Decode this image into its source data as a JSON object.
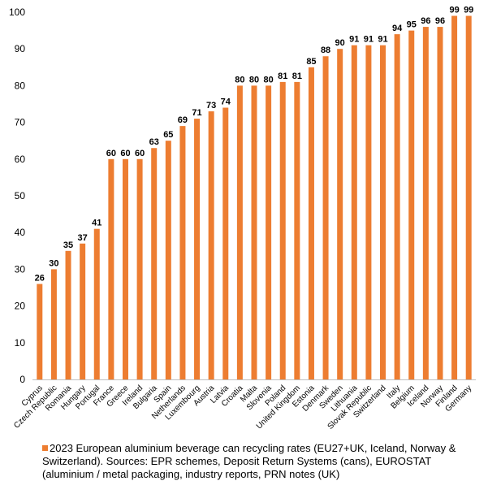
{
  "chart_data": {
    "type": "bar",
    "title": "",
    "xlabel": "",
    "ylabel": "",
    "ylim": [
      0,
      100
    ],
    "yticks": [
      0,
      10,
      20,
      30,
      40,
      50,
      60,
      70,
      80,
      90,
      100
    ],
    "grid": false,
    "bar_color": "#ED7D31",
    "categories": [
      "Cyprus",
      "Czech Republic",
      "Romania",
      "Hungary",
      "Portugal",
      "France",
      "Greece",
      "Ireland",
      "Bulgaria",
      "Spain",
      "Netherlands",
      "Luxembourg",
      "Austria",
      "Latvia",
      "Croatia",
      "Malta",
      "Slovenia",
      "Poland",
      "United Kingdom",
      "Estonia",
      "Denmark",
      "Sweden",
      "Lithuania",
      "Slovak Republic",
      "Switzerland",
      "Italy",
      "Belgium",
      "Iceland",
      "Norway",
      "Finland",
      "Germany"
    ],
    "series": [
      {
        "name": "2023 European aluminium beverage can recycling rates (EU27+UK, Iceland, Norway & Switzerland). Sources: EPR schemes, Deposit Return Systems (cans), EUROSTAT (aluminium / metal packaging, industry reports, PRN notes (UK)",
        "values": [
          26,
          30,
          35,
          37,
          41,
          60,
          60,
          60,
          63,
          65,
          69,
          71,
          73,
          74,
          80,
          80,
          80,
          81,
          81,
          85,
          88,
          90,
          91,
          91,
          91,
          94,
          95,
          96,
          96,
          99,
          99
        ]
      }
    ],
    "legend_position": "bottom"
  }
}
